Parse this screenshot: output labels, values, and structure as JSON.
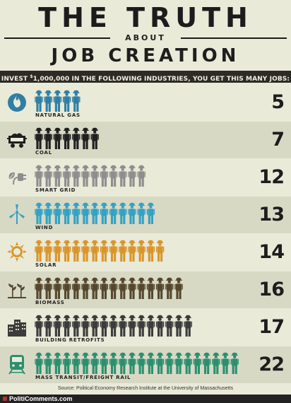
{
  "title": {
    "line1": "THE TRUTH",
    "about": "ABOUT",
    "line2": "JOB CREATION"
  },
  "invest_banner": {
    "prefix": "INVEST ",
    "currency": "$",
    "rest": "1,000,000 IN THE FOLLOWING INDUSTRIES, YOU GET THIS MANY JOBS:"
  },
  "chart_data": {
    "type": "bar",
    "title": "THE TRUTH ABOUT JOB CREATION",
    "subtitle": "INVEST $1,000,000 IN THE FOLLOWING INDUSTRIES, YOU GET THIS MANY JOBS:",
    "categories": [
      "NATURAL GAS",
      "COAL",
      "SMART GRID",
      "WIND",
      "SOLAR",
      "BIOMASS",
      "BUILDING RETROFITS",
      "MASS TRANSIT/FREIGHT RAIL"
    ],
    "values": [
      5,
      7,
      12,
      13,
      14,
      16,
      17,
      22
    ],
    "colors": [
      "#2f7fa4",
      "#202020",
      "#8e8e8e",
      "#33a2c4",
      "#d9952c",
      "#55472e",
      "#3c3c3c",
      "#2b8f6f"
    ],
    "icons": [
      "flame-icon",
      "coal-cart-icon",
      "plug-icon",
      "wind-turbine-icon",
      "sun-icon",
      "plant-icon",
      "buildings-icon",
      "train-icon"
    ]
  },
  "source": "Source: Political Economy Research Institute at the University of Massachusetts",
  "footer": "PolitiComments.com"
}
